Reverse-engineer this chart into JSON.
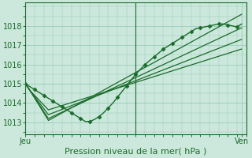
{
  "bg_color": "#cce8dc",
  "grid_color": "#99ccbb",
  "line_color": "#1a6b2a",
  "marker_color": "#1a6b2a",
  "axis_label": "Pression niveau de la mer( hPa )",
  "ylabel_ticks": [
    1013,
    1014,
    1015,
    1016,
    1017,
    1018
  ],
  "xlim": [
    0,
    48
  ],
  "ylim": [
    1012.4,
    1019.2
  ],
  "xtick_positions": [
    0,
    24,
    47
  ],
  "xtick_labels": [
    "Jeu",
    "",
    "Ven"
  ],
  "vline_x": 24,
  "series": [
    {
      "x": [
        0,
        1,
        2,
        3,
        4,
        5,
        6,
        7,
        8,
        9,
        10,
        11,
        12,
        13,
        14,
        15,
        16,
        17,
        18,
        19,
        20,
        21,
        22,
        23,
        24,
        25,
        26,
        27,
        28,
        29,
        30,
        31,
        32,
        33,
        34,
        35,
        36,
        37,
        38,
        39,
        40,
        41,
        42,
        43,
        44,
        45,
        46,
        47
      ],
      "y": [
        1015.0,
        1014.85,
        1014.7,
        1014.55,
        1014.4,
        1014.25,
        1014.1,
        1013.95,
        1013.8,
        1013.65,
        1013.5,
        1013.35,
        1013.2,
        1013.05,
        1013.05,
        1013.15,
        1013.3,
        1013.5,
        1013.75,
        1014.0,
        1014.3,
        1014.6,
        1014.9,
        1015.2,
        1015.5,
        1015.75,
        1016.0,
        1016.2,
        1016.4,
        1016.6,
        1016.8,
        1016.95,
        1017.1,
        1017.25,
        1017.4,
        1017.55,
        1017.7,
        1017.85,
        1017.9,
        1017.95,
        1018.0,
        1018.05,
        1018.1,
        1018.1,
        1018.05,
        1018.0,
        1017.95,
        1018.1
      ],
      "marker": true,
      "linewidth": 1.0,
      "markersize": 2.5,
      "markevery": 2
    },
    {
      "x": [
        0,
        1,
        5,
        47
      ],
      "y": [
        1015.0,
        1014.65,
        1013.1,
        1018.6
      ],
      "marker": false,
      "linewidth": 0.9
    },
    {
      "x": [
        0,
        1,
        5,
        47
      ],
      "y": [
        1015.0,
        1014.65,
        1013.2,
        1017.9
      ],
      "marker": false,
      "linewidth": 0.9
    },
    {
      "x": [
        0,
        1,
        5,
        47
      ],
      "y": [
        1015.0,
        1014.65,
        1013.4,
        1017.3
      ],
      "marker": false,
      "linewidth": 0.9
    },
    {
      "x": [
        0,
        1,
        5,
        47
      ],
      "y": [
        1015.0,
        1014.65,
        1013.65,
        1016.8
      ],
      "marker": false,
      "linewidth": 0.9
    }
  ],
  "label_fontsize": 8,
  "tick_fontsize": 7
}
